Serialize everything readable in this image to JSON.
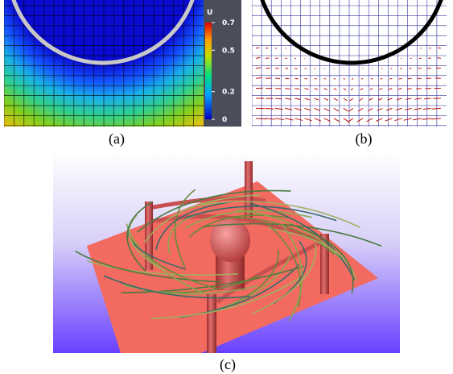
{
  "panels": {
    "a": {
      "caption": "(a)",
      "colorbar": {
        "title": "U",
        "range": [
          0,
          0.7
        ],
        "ticks": [
          0,
          0.2,
          0.5,
          0.7
        ]
      }
    },
    "b": {
      "caption": "(b)"
    },
    "c": {
      "caption": "(c)"
    }
  }
}
